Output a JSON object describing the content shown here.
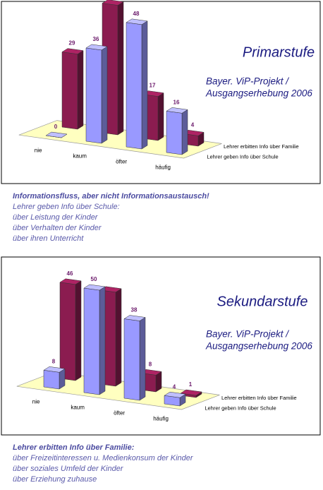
{
  "chart_data": [
    {
      "type": "bar",
      "title": "Primarstufe",
      "subtitle": [
        "Bayer. ViP-Projekt /",
        "Ausgangserhebung 2006"
      ],
      "categories": [
        "nie",
        "kaum",
        "öfter",
        "häufig"
      ],
      "series": [
        {
          "name": "Lehrer erbitten Info über Familie",
          "color": "#8b1c50",
          "values": [
            29,
            50,
            17,
            4
          ]
        },
        {
          "name": "Lehrer geben Info über Schule",
          "color": "#9999ff",
          "values": [
            0,
            36,
            48,
            16
          ]
        }
      ]
    },
    {
      "type": "bar",
      "title": "Sekundarstufe",
      "subtitle": [
        "Bayer. ViP-Projekt /",
        "Ausgangserhebung 2006"
      ],
      "categories": [
        "nie",
        "kaum",
        "öfter",
        "häufig"
      ],
      "series": [
        {
          "name": "Lehrer erbitten Info über Familie",
          "color": "#8b1c50",
          "values": [
            46,
            45,
            8,
            1
          ],
          "value_labels": [
            "46",
            null,
            "8",
            "1"
          ]
        },
        {
          "name": "Lehrer geben Info über Schule",
          "color": "#9999ff",
          "values": [
            8,
            50,
            38,
            4
          ]
        }
      ]
    }
  ],
  "captions": [
    {
      "heading": "Informationsfluss, aber nicht Informationsaustausch!",
      "lines": [
        "Lehrer geben Info über Schule:",
        "über Leistung der Kinder",
        "über Verhalten der Kinder",
        "über ihren Unterricht"
      ]
    },
    {
      "heading": "Lehrer erbitten Info über Familie:",
      "lines": [
        "über Freizeitinteressen u. Medienkonsum der Kinder",
        "über soziales Umfeld der Kinder",
        "über Erziehung zuhause"
      ]
    }
  ]
}
